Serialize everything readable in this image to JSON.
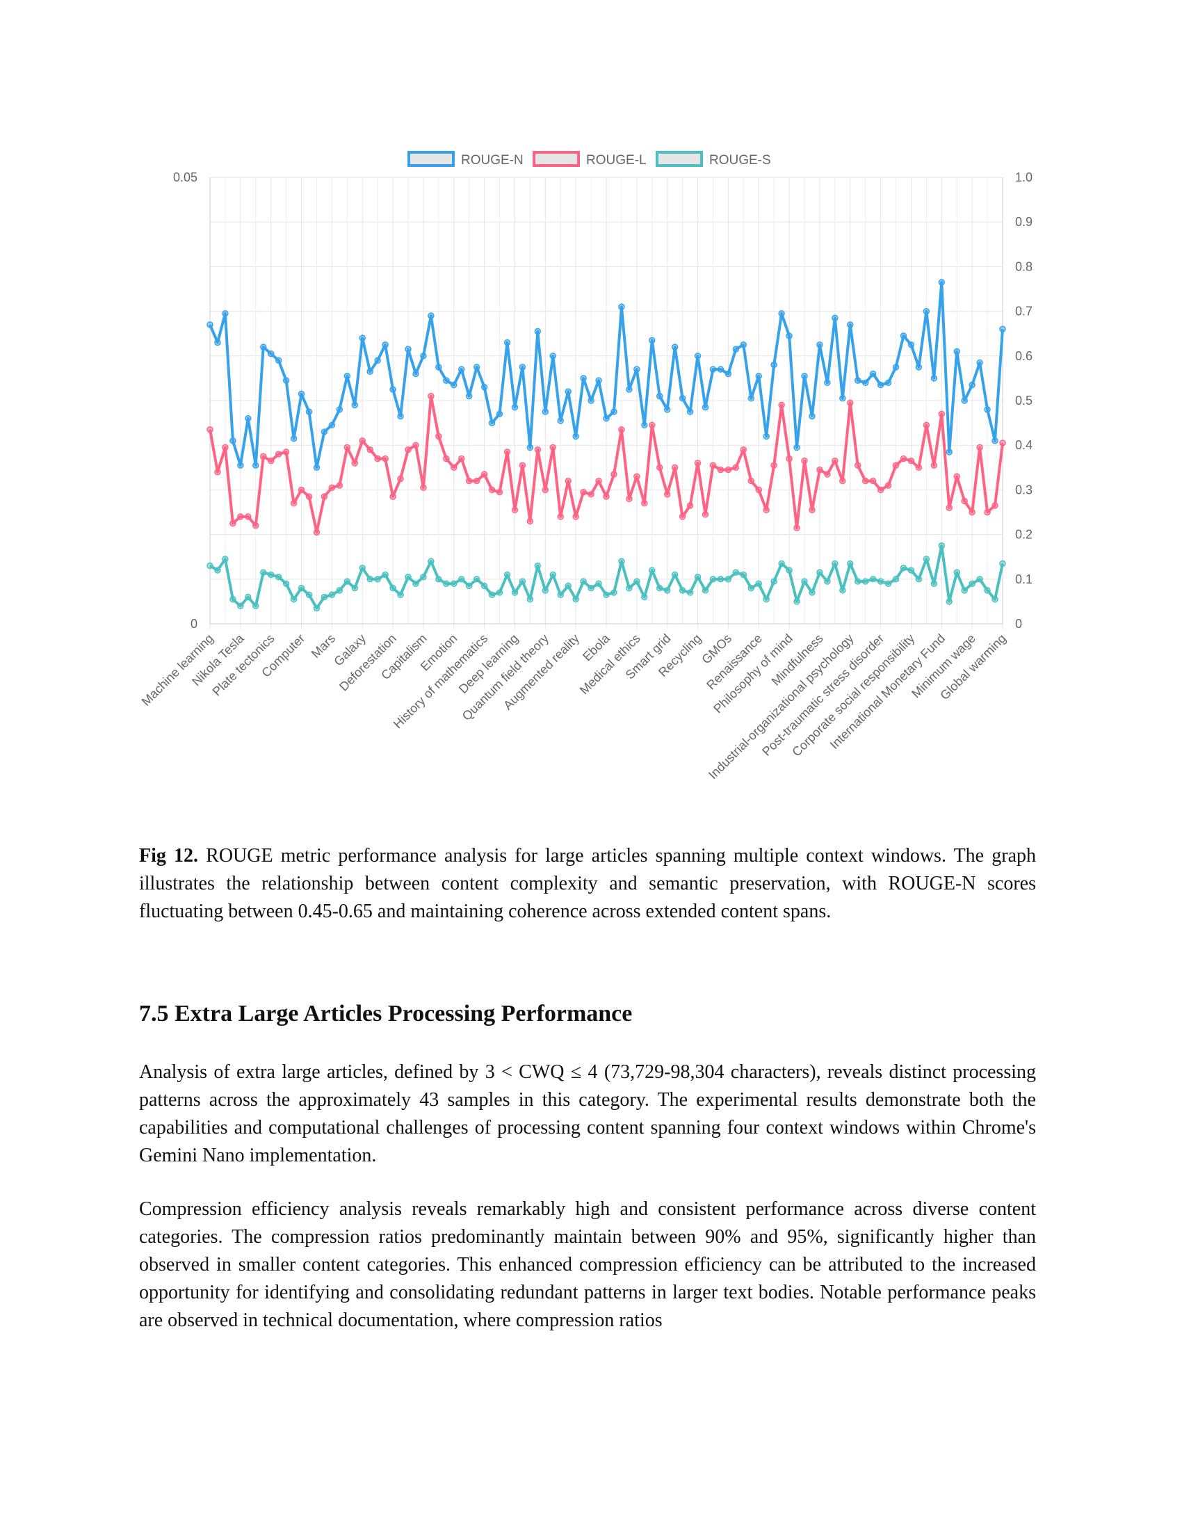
{
  "figure": {
    "chart_data": {
      "type": "line",
      "title": "",
      "xlabel": "",
      "ylabel": "",
      "y_left": {
        "min": 0,
        "max": 0.05,
        "ticks": [
          "0",
          "0.05"
        ]
      },
      "y_right": {
        "min": 0,
        "max": 1.0,
        "ticks": [
          "0",
          "0.1",
          "0.2",
          "0.3",
          "0.4",
          "0.5",
          "0.6",
          "0.7",
          "0.8",
          "0.9",
          "1.0"
        ]
      },
      "legend_position": "top",
      "grid": true,
      "x_tick_labels": [
        "Machine learning",
        "Nikola Tesla",
        "Plate tectonics",
        "Computer",
        "Mars",
        "Galaxy",
        "Deforestation",
        "Capitalism",
        "Emotion",
        "History of mathematics",
        "Deep learning",
        "Quantum field theory",
        "Augmented reality",
        "Ebola",
        "Medical ethics",
        "Smart grid",
        "Recycling",
        "GMOs",
        "Renaissance",
        "Philosophy of mind",
        "Mindfulness",
        "Industrial-organizational psychology",
        "Post-traumatic stress disorder",
        "Corporate social responsibility",
        "International Monetary Fund",
        "Minimum wage",
        "Global warming"
      ],
      "series": [
        {
          "name": "ROUGE-N",
          "color": "#36a2eb",
          "values": [
            0.67,
            0.63,
            0.695,
            0.41,
            0.355,
            0.46,
            0.355,
            0.62,
            0.605,
            0.59,
            0.545,
            0.415,
            0.515,
            0.475,
            0.35,
            0.43,
            0.445,
            0.48,
            0.555,
            0.49,
            0.64,
            0.565,
            0.59,
            0.625,
            0.525,
            0.465,
            0.615,
            0.56,
            0.6,
            0.69,
            0.575,
            0.545,
            0.535,
            0.57,
            0.51,
            0.575,
            0.53,
            0.45,
            0.47,
            0.63,
            0.485,
            0.575,
            0.395,
            0.655,
            0.475,
            0.6,
            0.455,
            0.52,
            0.42,
            0.55,
            0.5,
            0.545,
            0.46,
            0.475,
            0.71,
            0.525,
            0.57,
            0.445,
            0.635,
            0.51,
            0.48,
            0.62,
            0.505,
            0.475,
            0.6,
            0.485,
            0.57,
            0.57,
            0.56,
            0.615,
            0.625,
            0.505,
            0.555,
            0.42,
            0.58,
            0.695,
            0.645,
            0.395,
            0.555,
            0.465,
            0.625,
            0.54,
            0.685,
            0.505,
            0.67,
            0.545,
            0.54,
            0.56,
            0.535,
            0.54,
            0.575,
            0.645,
            0.625,
            0.575,
            0.7,
            0.55,
            0.765,
            0.385,
            0.61,
            0.5,
            0.535,
            0.585,
            0.48,
            0.41,
            0.66
          ]
        },
        {
          "name": "ROUGE-L",
          "color": "#ff6384",
          "values": [
            0.435,
            0.34,
            0.395,
            0.225,
            0.24,
            0.24,
            0.22,
            0.375,
            0.365,
            0.38,
            0.385,
            0.27,
            0.3,
            0.285,
            0.205,
            0.285,
            0.305,
            0.31,
            0.395,
            0.36,
            0.41,
            0.39,
            0.37,
            0.37,
            0.285,
            0.325,
            0.39,
            0.4,
            0.305,
            0.51,
            0.42,
            0.37,
            0.35,
            0.37,
            0.32,
            0.32,
            0.335,
            0.3,
            0.295,
            0.385,
            0.255,
            0.355,
            0.23,
            0.39,
            0.3,
            0.395,
            0.24,
            0.32,
            0.24,
            0.295,
            0.29,
            0.32,
            0.285,
            0.335,
            0.435,
            0.28,
            0.33,
            0.27,
            0.445,
            0.35,
            0.29,
            0.35,
            0.24,
            0.265,
            0.36,
            0.245,
            0.355,
            0.345,
            0.345,
            0.35,
            0.39,
            0.32,
            0.3,
            0.255,
            0.355,
            0.49,
            0.37,
            0.215,
            0.365,
            0.255,
            0.345,
            0.335,
            0.365,
            0.32,
            0.495,
            0.355,
            0.32,
            0.32,
            0.3,
            0.31,
            0.355,
            0.37,
            0.365,
            0.35,
            0.445,
            0.355,
            0.47,
            0.26,
            0.33,
            0.275,
            0.25,
            0.395,
            0.25,
            0.265,
            0.405
          ]
        },
        {
          "name": "ROUGE-S",
          "color": "#4bc0c0",
          "values": [
            0.13,
            0.12,
            0.145,
            0.055,
            0.04,
            0.06,
            0.04,
            0.115,
            0.11,
            0.105,
            0.09,
            0.055,
            0.08,
            0.065,
            0.035,
            0.06,
            0.065,
            0.075,
            0.095,
            0.08,
            0.125,
            0.1,
            0.1,
            0.11,
            0.08,
            0.065,
            0.105,
            0.09,
            0.105,
            0.14,
            0.1,
            0.09,
            0.09,
            0.1,
            0.085,
            0.1,
            0.085,
            0.065,
            0.07,
            0.11,
            0.07,
            0.095,
            0.055,
            0.13,
            0.075,
            0.11,
            0.065,
            0.085,
            0.055,
            0.095,
            0.08,
            0.09,
            0.065,
            0.07,
            0.14,
            0.08,
            0.095,
            0.06,
            0.12,
            0.08,
            0.075,
            0.11,
            0.075,
            0.07,
            0.105,
            0.075,
            0.1,
            0.1,
            0.1,
            0.115,
            0.11,
            0.08,
            0.09,
            0.055,
            0.095,
            0.135,
            0.12,
            0.05,
            0.095,
            0.07,
            0.115,
            0.095,
            0.135,
            0.075,
            0.135,
            0.095,
            0.095,
            0.1,
            0.095,
            0.09,
            0.1,
            0.125,
            0.12,
            0.1,
            0.145,
            0.09,
            0.175,
            0.05,
            0.115,
            0.075,
            0.09,
            0.1,
            0.075,
            0.055,
            0.135
          ]
        }
      ]
    }
  },
  "caption": {
    "label": "Fig 12.",
    "text": " ROUGE metric performance analysis for large articles spanning multiple context windows. The graph illustrates the relationship between content complexity and semantic preservation, with ROUGE-N scores fluctuating between 0.45-0.65 and maintaining coherence across extended content spans."
  },
  "section": {
    "heading": "7.5 Extra Large Articles Processing Performance",
    "paragraphs": [
      "Analysis of extra large articles, defined by 3 < CWQ ≤ 4 (73,729-98,304 characters), reveals distinct processing patterns across the approximately 43 samples in this category. The experimental results demonstrate both the capabilities and computational challenges of processing content spanning four context windows within Chrome's Gemini Nano implementation.",
      "Compression efficiency analysis reveals remarkably high and consistent performance across diverse content categories. The compression ratios predominantly maintain between 90% and 95%, significantly higher than observed in smaller content categories. This enhanced compression efficiency can be attributed to the increased opportunity for identifying and consolidating redundant patterns in larger text bodies. Notable performance peaks are observed in technical documentation, where compression ratios"
    ]
  }
}
